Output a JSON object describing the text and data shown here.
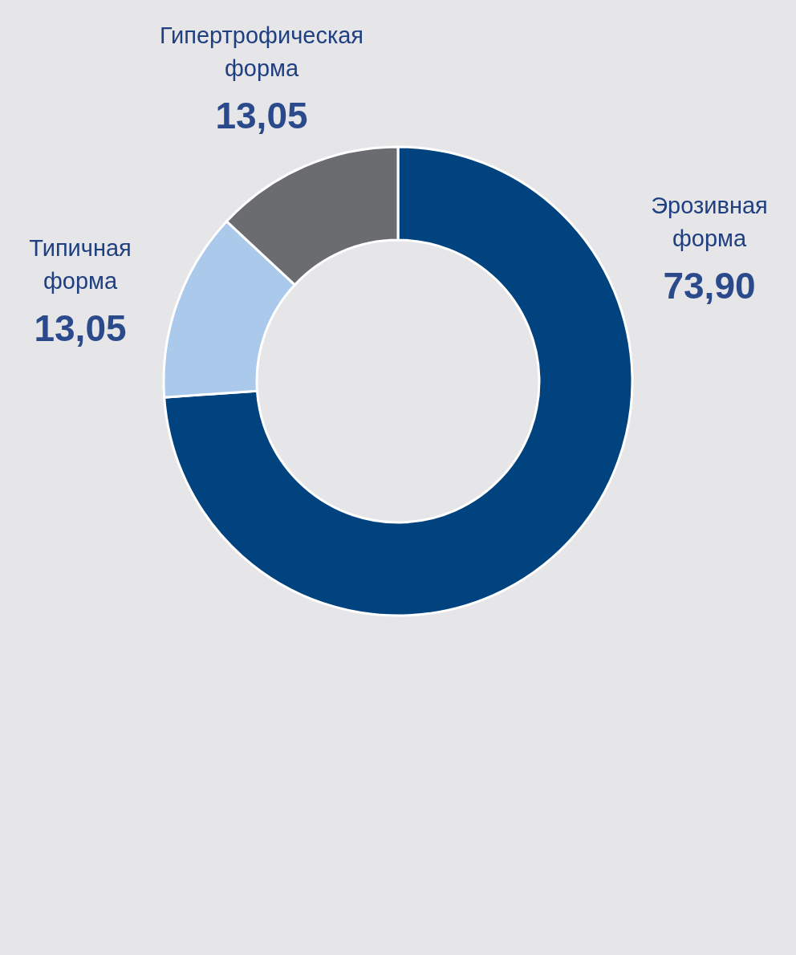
{
  "chart_data": {
    "type": "donut",
    "categories": [
      "Эрозивная форма",
      "Типичная форма",
      "Гипертрофическая форма"
    ],
    "values": [
      73.9,
      13.05,
      13.05
    ],
    "colors": [
      "#00437f",
      "#abcaeb",
      "#6b6c70"
    ],
    "value_labels": [
      "73,90",
      "13,05",
      "13,05"
    ]
  }
}
